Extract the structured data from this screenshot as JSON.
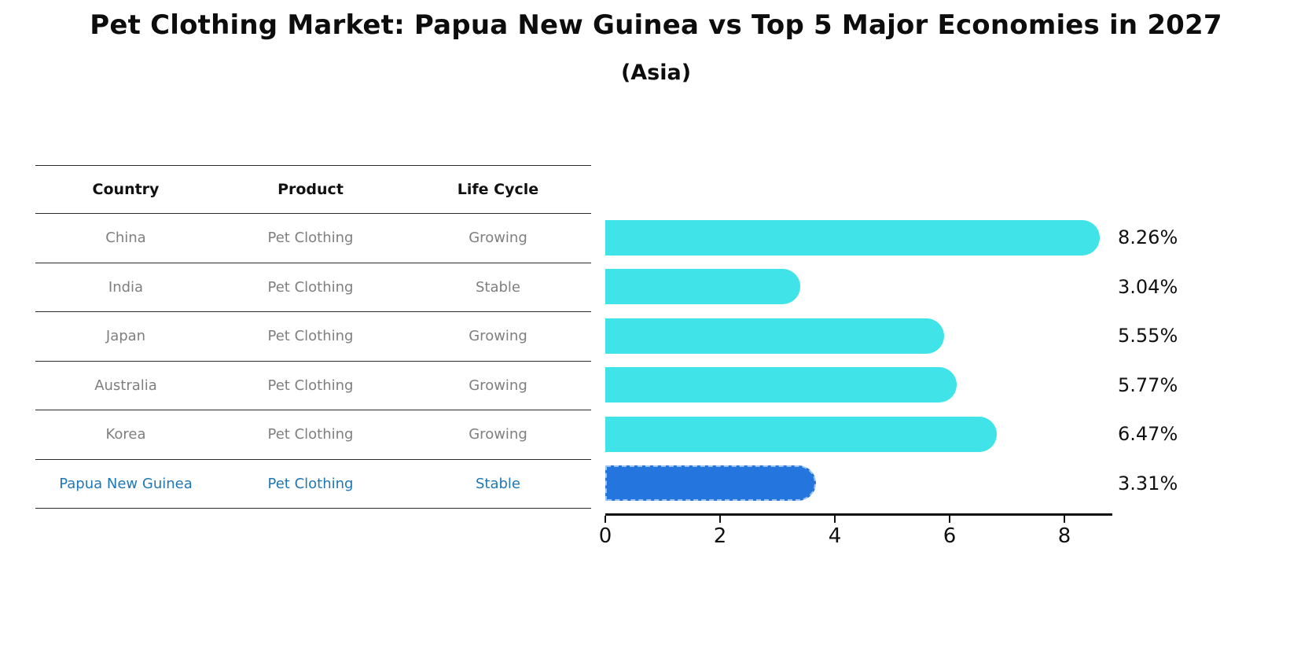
{
  "title": "Pet Clothing Market: Papua New Guinea vs Top 5 Major Economies in 2027",
  "subtitle": "(Asia)",
  "table": {
    "headers": [
      "Country",
      "Product",
      "Life Cycle"
    ],
    "rows": [
      {
        "country": "China",
        "product": "Pet Clothing",
        "life_cycle": "Growing",
        "highlight": false
      },
      {
        "country": "India",
        "product": "Pet Clothing",
        "life_cycle": "Stable",
        "highlight": false
      },
      {
        "country": "Japan",
        "product": "Pet Clothing",
        "life_cycle": "Growing",
        "highlight": false
      },
      {
        "country": "Australia",
        "product": "Pet Clothing",
        "life_cycle": "Growing",
        "highlight": false
      },
      {
        "country": "Korea",
        "product": "Pet Clothing",
        "life_cycle": "Growing",
        "highlight": false
      },
      {
        "country": "Papua New Guinea",
        "product": "Pet Clothing",
        "life_cycle": "Stable",
        "highlight": true
      }
    ]
  },
  "chart_data": {
    "type": "bar",
    "orientation": "horizontal",
    "title": "Pet Clothing Market: Papua New Guinea vs Top 5 Major Economies in 2027 (Asia)",
    "categories": [
      "China",
      "India",
      "Japan",
      "Australia",
      "Korea",
      "Papua New Guinea"
    ],
    "values": [
      8.26,
      3.04,
      5.55,
      5.77,
      6.47,
      3.31
    ],
    "value_labels": [
      "8.26%",
      "3.04%",
      "5.55%",
      "5.77%",
      "6.47%",
      "3.31%"
    ],
    "unit": "%",
    "xlim": [
      0,
      8.8
    ],
    "xticks": [
      "0",
      "2",
      "4",
      "6",
      "8"
    ],
    "grid": false,
    "legend": "none",
    "highlight_index": 5,
    "bar_color": "#40E4E8",
    "highlight_bar_color": "#2575DE",
    "highlight_text_color": "#1F77B4"
  }
}
